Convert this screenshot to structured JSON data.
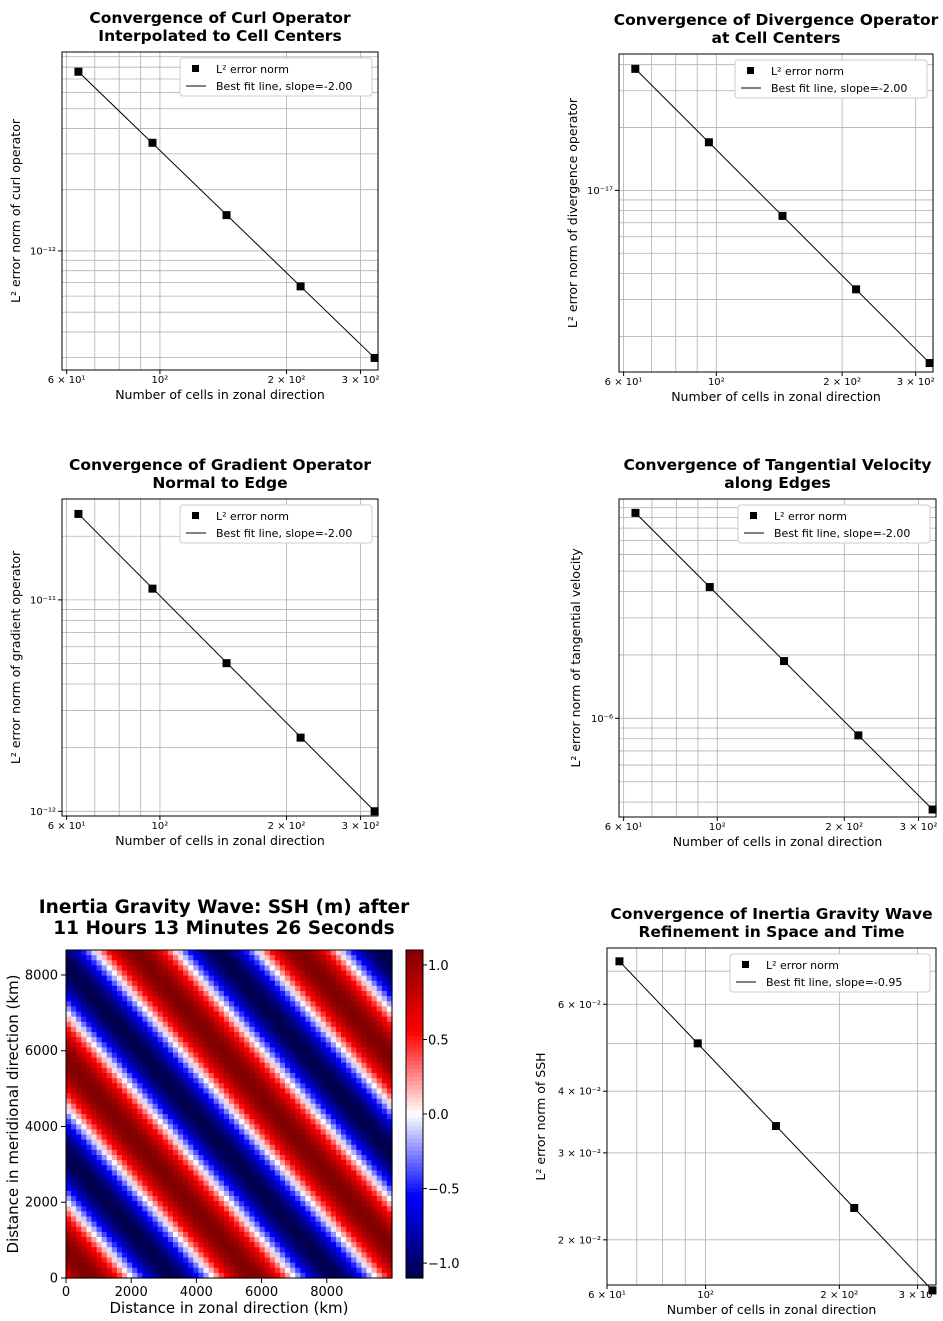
{
  "chart_data": [
    {
      "type": "scatter",
      "title": "Convergence of Curl Operator\nInterpolated to Cell Centers",
      "xlabel": "Number of cells in zonal direction",
      "ylabel": "L² error norm of curl operator",
      "xscale": "log",
      "yscale": "log",
      "xlim": [
        58.5,
        330
      ],
      "ylim": [
        2.6e-13,
        9.5e-12
      ],
      "xticks": [
        "6 × 10¹",
        "10²",
        "2 × 10²",
        "3 × 10²"
      ],
      "yticks": [
        "10⁻¹²"
      ],
      "grid": true,
      "legend_position": "top-right",
      "series": [
        {
          "name": "L² error norm",
          "x": [
            64,
            96,
            144,
            216,
            324
          ],
          "y": [
            7.6e-12,
            3.4e-12,
            1.5e-12,
            6.7e-13,
            2.98e-13
          ]
        },
        {
          "name": "Best fit line, slope=-2.00",
          "x": [
            64,
            324
          ],
          "y": [
            7.6e-12,
            2.98e-13
          ]
        }
      ]
    },
    {
      "type": "scatter",
      "title": "Convergence of Divergence Operator\nat Cell Centers",
      "xlabel": "Number of cells in zonal direction",
      "ylabel": "L² error norm of divergence operator",
      "xscale": "log",
      "yscale": "log",
      "xlim": [
        58.5,
        330
      ],
      "ylim": [
        1.35e-18,
        4.5e-17
      ],
      "xticks": [
        "6 × 10¹",
        "10²",
        "2 × 10²",
        "3 × 10²"
      ],
      "yticks": [
        "10⁻¹⁷"
      ],
      "grid": true,
      "legend_position": "top-right",
      "series": [
        {
          "name": "L² error norm",
          "x": [
            64,
            96,
            144,
            216,
            324
          ],
          "y": [
            3.82e-17,
            1.7e-17,
            7.55e-18,
            3.36e-18,
            1.49e-18
          ]
        },
        {
          "name": "Best fit line, slope=-2.00",
          "x": [
            64,
            324
          ],
          "y": [
            3.82e-17,
            1.49e-18
          ]
        }
      ]
    },
    {
      "type": "scatter",
      "title": "Convergence of Gradient Operator\nNormal to Edge",
      "xlabel": "Number of cells in zonal direction",
      "ylabel": "L² error norm of gradient operator",
      "xscale": "log",
      "yscale": "log",
      "xlim": [
        58.5,
        330
      ],
      "ylim": [
        9.5e-13,
        3e-11
      ],
      "xticks": [
        "6 × 10¹",
        "10²",
        "2 × 10²",
        "3 × 10²"
      ],
      "yticks": [
        "10⁻¹¹",
        "10⁻¹²"
      ],
      "grid": true,
      "legend_position": "top-right",
      "series": [
        {
          "name": "L² error norm",
          "x": [
            64,
            96,
            144,
            216,
            324
          ],
          "y": [
            2.55e-11,
            1.13e-11,
            5.02e-12,
            2.23e-12,
            1e-12
          ]
        },
        {
          "name": "Best fit line, slope=-2.00",
          "x": [
            64,
            324
          ],
          "y": [
            2.55e-11,
            1e-12
          ]
        }
      ]
    },
    {
      "type": "scatter",
      "title": "Convergence of Tangential Velocity\nalong Edges",
      "xlabel": "Number of cells in zonal direction",
      "ylabel": "L² error norm of tangential velocity",
      "xscale": "log",
      "yscale": "log",
      "xlim": [
        58.5,
        330
      ],
      "ylim": [
        3.4e-07,
        1.1e-05
      ],
      "xticks": [
        "6 × 10¹",
        "10²",
        "2 × 10²",
        "3 × 10²"
      ],
      "yticks": [
        "10⁻⁶"
      ],
      "grid": true,
      "legend_position": "top-right",
      "series": [
        {
          "name": "L² error norm",
          "x": [
            64,
            96,
            144,
            216,
            324
          ],
          "y": [
            9.45e-06,
            4.2e-06,
            1.87e-06,
            8.3e-07,
            3.69e-07
          ]
        },
        {
          "name": "Best fit line, slope=-2.00",
          "x": [
            64,
            324
          ],
          "y": [
            9.45e-06,
            3.69e-07
          ]
        }
      ]
    },
    {
      "type": "heatmap",
      "title": "Inertia Gravity Wave: SSH (m) after\n11 Hours 13 Minutes 26 Seconds",
      "xlabel": "Distance in zonal direction (km)",
      "ylabel": "Distance in meridional direction (km)",
      "xlim": [
        0,
        10000
      ],
      "ylim": [
        0,
        8660
      ],
      "xticks": [
        0,
        2000,
        4000,
        6000,
        8000
      ],
      "yticks": [
        0,
        2000,
        4000,
        6000,
        8000
      ],
      "colorbar": {
        "min": -1.1,
        "max": 1.1,
        "ticks": [
          "1.0",
          "0.5",
          "0.0",
          "−0.5",
          "−1.0"
        ],
        "colormap": "seismic"
      },
      "field": {
        "amplitude": 1.1,
        "wavelength_km": 5000,
        "wave_direction": "diagonal, phase lines run from upper-left to lower-right"
      },
      "grid": false
    },
    {
      "type": "scatter",
      "title": "Convergence of Inertia Gravity Wave\nRefinement in Space and Time",
      "xlabel": "Number of cells in zonal direction",
      "ylabel": "L² error norm of SSH",
      "xscale": "log",
      "yscale": "log",
      "xlim": [
        60,
        330
      ],
      "ylim": [
        0.0162,
        0.078
      ],
      "xticks": [
        "6 × 10¹",
        "10²",
        "2 × 10²",
        "3 × 10²"
      ],
      "yticks": [
        "6 × 10⁻²",
        "4 × 10⁻²",
        "3 × 10⁻²",
        "2 × 10⁻²"
      ],
      "grid": true,
      "legend_position": "top-right",
      "series": [
        {
          "name": "L² error norm",
          "x": [
            64,
            96,
            144,
            216,
            324
          ],
          "y": [
            0.0733,
            0.05,
            0.034,
            0.0232,
            0.0158
          ]
        },
        {
          "name": "Best fit line, slope=-0.95",
          "x": [
            64,
            324
          ],
          "y": [
            0.0733,
            0.0158
          ]
        }
      ]
    }
  ]
}
